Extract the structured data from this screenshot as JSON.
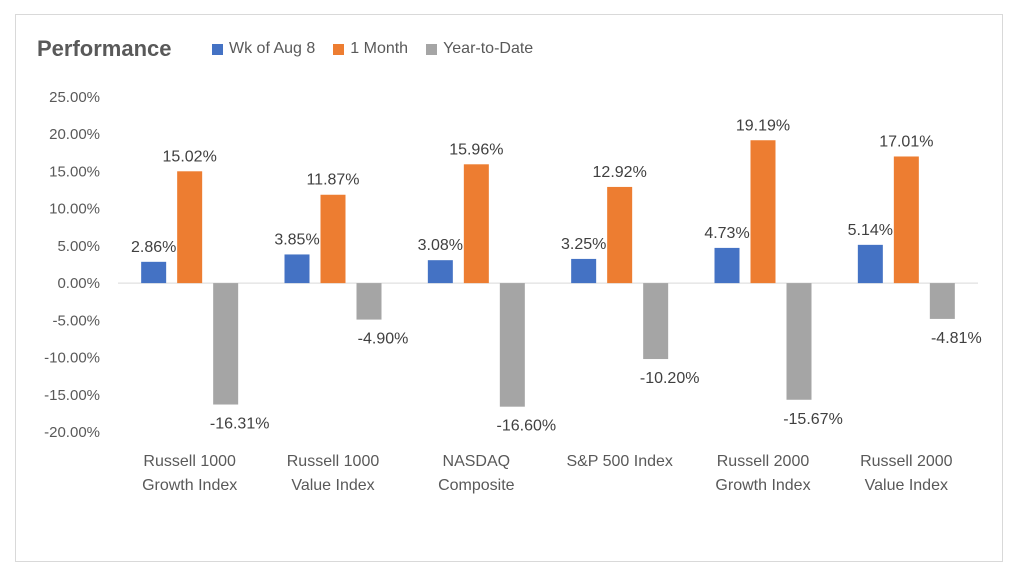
{
  "chart_data": {
    "type": "bar",
    "title": "Performance",
    "categories": [
      [
        "Russell 1000",
        "Growth Index"
      ],
      [
        "Russell 1000",
        "Value Index"
      ],
      [
        "NASDAQ",
        "Composite"
      ],
      [
        "S&P 500 Index"
      ],
      [
        "Russell 2000",
        "Growth Index"
      ],
      [
        "Russell 2000",
        "Value Index"
      ]
    ],
    "series": [
      {
        "name": "Wk of Aug 8",
        "color": "#4472c4",
        "values": [
          2.86,
          3.85,
          3.08,
          3.25,
          4.73,
          5.14
        ],
        "labels": [
          "2.86%",
          "3.85%",
          "3.08%",
          "3.25%",
          "4.73%",
          "5.14%"
        ]
      },
      {
        "name": "1 Month",
        "color": "#ed7d31",
        "values": [
          15.02,
          11.87,
          15.96,
          12.92,
          19.19,
          17.01
        ],
        "labels": [
          "15.02%",
          "11.87%",
          "15.96%",
          "12.92%",
          "19.19%",
          "17.01%"
        ]
      },
      {
        "name": "Year-to-Date",
        "color": "#a5a5a5",
        "values": [
          -16.31,
          -4.9,
          -16.6,
          -10.2,
          -15.67,
          -4.81
        ],
        "labels": [
          "-16.31%",
          "-4.90%",
          "-16.60%",
          "-10.20%",
          "-15.67%",
          "-4.81%"
        ]
      }
    ],
    "ylim": [
      -20,
      25
    ],
    "yticks": [
      "25.00%",
      "20.00%",
      "15.00%",
      "10.00%",
      "5.00%",
      "0.00%",
      "-5.00%",
      "-10.00%",
      "-15.00%",
      "-20.00%"
    ],
    "ytick_values": [
      25,
      20,
      15,
      10,
      5,
      0,
      -5,
      -10,
      -15,
      -20
    ],
    "grid": false,
    "legend_position": "top"
  }
}
